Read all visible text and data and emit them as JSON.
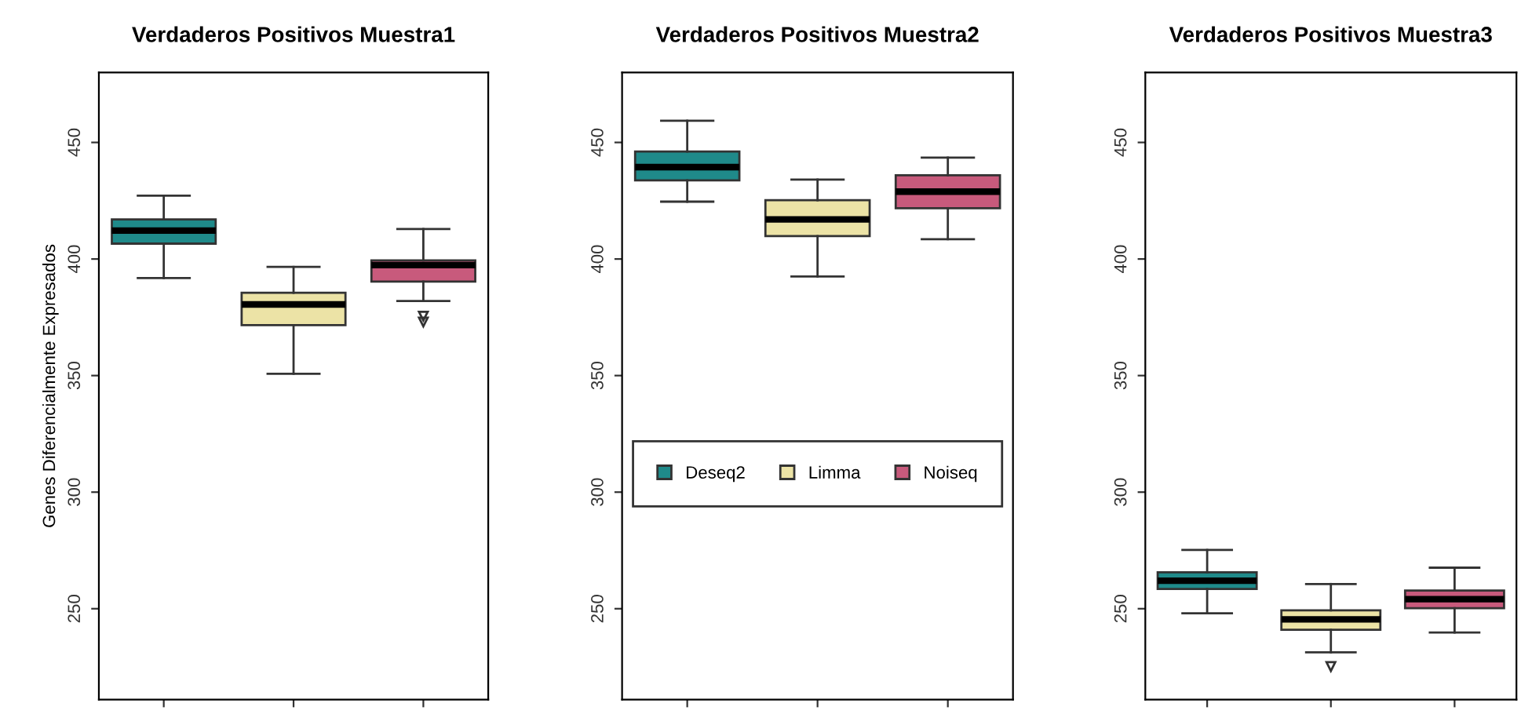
{
  "chart_data": [
    {
      "type": "box",
      "title": "Verdaderos Positivos Muestra1",
      "ylabel": "Genes Diferencialmente Expresados",
      "categories": [
        null,
        null,
        null
      ],
      "ylim": [
        211,
        480
      ],
      "yticks": [
        250,
        300,
        350,
        400,
        450
      ],
      "marker": "triangle",
      "series": [
        {
          "color": "#1f8a8a",
          "boxes": [
            {
              "low": 391.8,
              "q1": 406.6,
              "median": 412.2,
              "q3": 417,
              "high": 427.2
            },
            null,
            null
          ]
        },
        {
          "color": "#ece3a6",
          "boxes": [
            null,
            {
              "low": 350.8,
              "q1": 371.6,
              "median": 380.5,
              "q3": 385.5,
              "high": 396.6
            },
            null
          ]
        },
        {
          "color": "#c85a7c",
          "boxes": [
            null,
            null,
            {
              "low": 382,
              "q1": 390.3,
              "median": 397.4,
              "q3": 399.4,
              "high": 412.9,
              "outliers": [
                375.5,
                373
              ]
            }
          ]
        }
      ]
    },
    {
      "type": "box",
      "title": "Verdaderos Positivos Muestra2",
      "categories": [
        null,
        null,
        null
      ],
      "ylim": [
        211,
        480
      ],
      "yticks": [
        250,
        300,
        350,
        400,
        450
      ],
      "legend": "center",
      "series": [
        {
          "name": "Deseq2",
          "color": "#1f8a8a",
          "boxes": [
            {
              "low": 424.6,
              "q1": 433.7,
              "median": 439.4,
              "q3": 446.1,
              "high": 459.3
            },
            null,
            null
          ]
        },
        {
          "name": "Limma",
          "color": "#ece3a6",
          "boxes": [
            null,
            {
              "low": 392.5,
              "q1": 409.8,
              "median": 417,
              "q3": 425.2,
              "high": 434.1
            },
            null
          ]
        },
        {
          "name": "Noiseq",
          "color": "#c85a7c",
          "boxes": [
            null,
            null,
            {
              "low": 408.5,
              "q1": 421.8,
              "median": 428.9,
              "q3": 435.9,
              "high": 443.5
            }
          ]
        }
      ]
    },
    {
      "type": "box",
      "title": "Verdaderos Positivos Muestra3",
      "categories": [
        null,
        null,
        null
      ],
      "ylim": [
        211,
        480
      ],
      "yticks": [
        250,
        300,
        350,
        400,
        450
      ],
      "marker": "triangle",
      "series": [
        {
          "color": "#1f8a8a",
          "boxes": [
            {
              "low": 248,
              "q1": 258.5,
              "median": 262,
              "q3": 265.6,
              "high": 275.2
            },
            null,
            null
          ]
        },
        {
          "color": "#ece3a6",
          "boxes": [
            null,
            {
              "low": 231.3,
              "q1": 241,
              "median": 245.4,
              "q3": 249.3,
              "high": 260.6,
              "outliers": [
                225.2
              ]
            },
            null
          ]
        },
        {
          "color": "#c85a7c",
          "boxes": [
            null,
            null,
            {
              "low": 239.8,
              "q1": 250.2,
              "median": 254.1,
              "q3": 257.8,
              "high": 267.6
            }
          ]
        }
      ]
    }
  ]
}
